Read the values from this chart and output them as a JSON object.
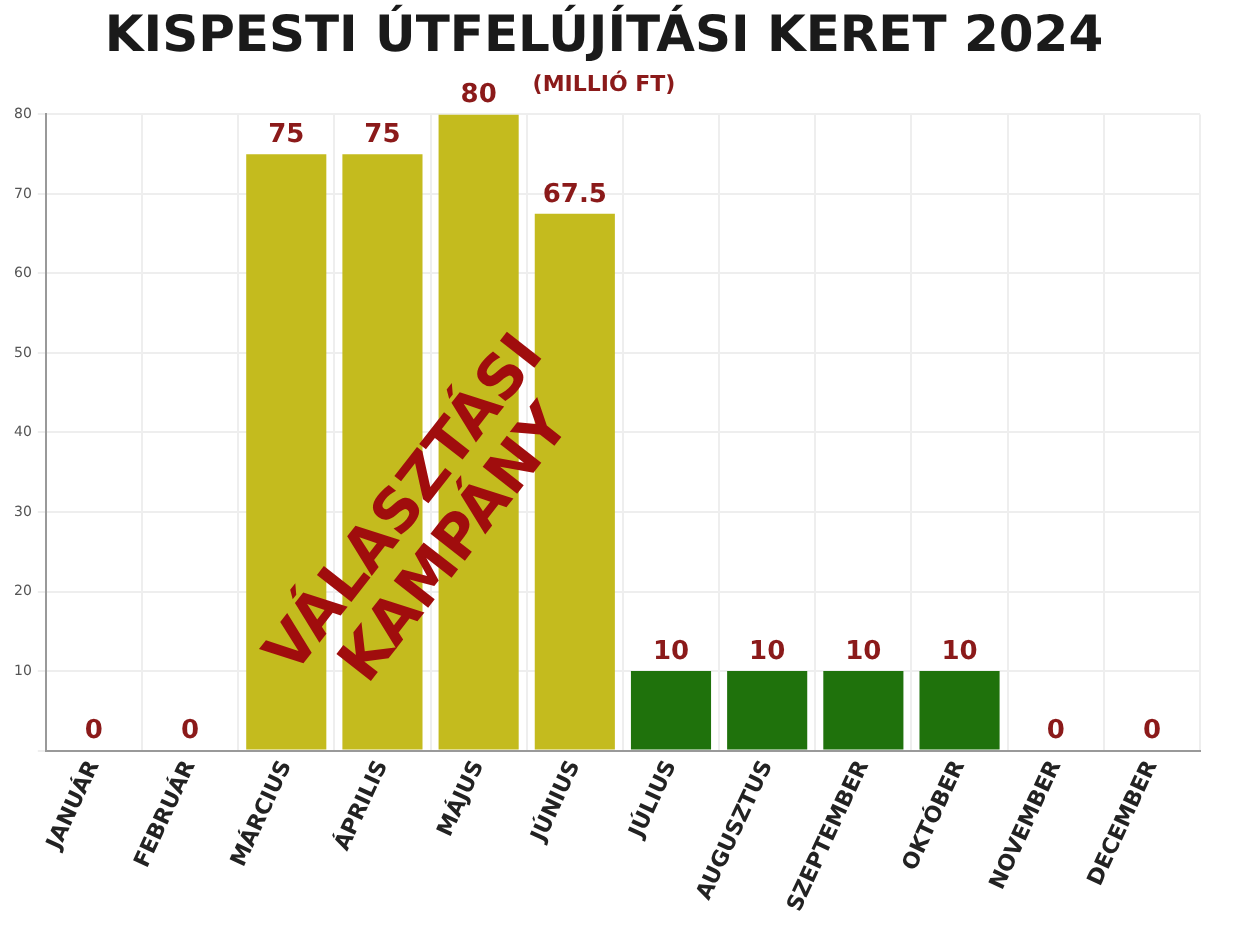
{
  "chart_data": {
    "type": "bar",
    "title": "KISPESTI ÚTFELÚJÍTÁSI KERET 2024",
    "subtitle": "(MILLIÓ FT)",
    "categories": [
      "JANUÁR",
      "FEBRUÁR",
      "MÁRCIUS",
      "ÁPRILIS",
      "MÁJUS",
      "JÚNIUS",
      "JÚLIUS",
      "AUGUSZTUS",
      "SZEPTEMBER",
      "OKTÓBER",
      "NOVEMBER",
      "DECEMBER"
    ],
    "values": [
      0,
      0,
      75,
      75,
      80,
      67.5,
      10,
      10,
      10,
      10,
      0,
      0
    ],
    "colors": [
      "#8aa0a0",
      "#8aa0a0",
      "#c4bb1e",
      "#c4bb1e",
      "#c4bb1e",
      "#c4bb1e",
      "#1f720c",
      "#1f720c",
      "#1f720c",
      "#1f720c",
      "#8aa0a0",
      "#8aa0a0"
    ],
    "ylim": [
      0,
      80
    ],
    "yticks": [
      {
        "value": 0,
        "label": null
      },
      10,
      20,
      30,
      40,
      50,
      60,
      70,
      80
    ],
    "grid": true,
    "data_labels": true,
    "annotations": [
      "VÁLASZTÁSI\nKAMPÁNY"
    ]
  }
}
